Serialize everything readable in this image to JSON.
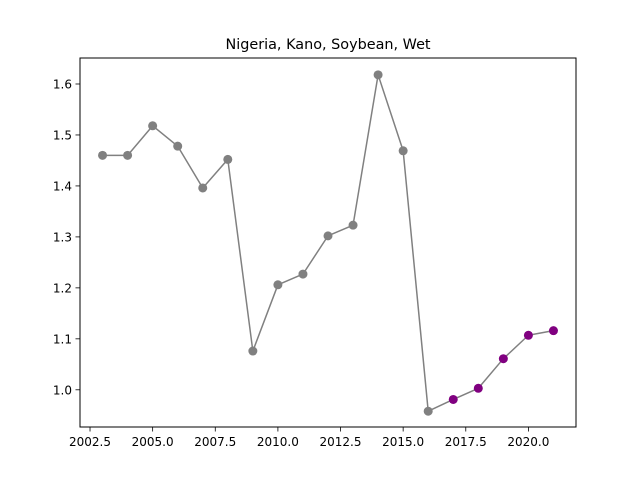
{
  "chart_data": {
    "type": "line",
    "title": "Nigeria, Kano, Soybean, Wet",
    "xlabel": "",
    "ylabel": "",
    "xlim": [
      2002.1,
      2021.9
    ],
    "ylim": [
      0.927,
      1.651
    ],
    "grid": false,
    "x_ticks": [
      2002.5,
      2005.0,
      2007.5,
      2010.0,
      2012.5,
      2015.0,
      2017.5,
      2020.0
    ],
    "x_tick_labels": [
      "2002.5",
      "2005.0",
      "2007.5",
      "2010.0",
      "2012.5",
      "2015.0",
      "2017.5",
      "2020.0"
    ],
    "y_ticks": [
      1.0,
      1.1,
      1.2,
      1.3,
      1.4,
      1.5,
      1.6
    ],
    "y_tick_labels": [
      "1.0",
      "1.1",
      "1.2",
      "1.3",
      "1.4",
      "1.5",
      "1.6"
    ],
    "x": [
      2003,
      2004,
      2005,
      2006,
      2007,
      2008,
      2009,
      2010,
      2011,
      2012,
      2013,
      2014,
      2015,
      2016,
      2017,
      2018,
      2019,
      2020,
      2021
    ],
    "y": [
      1.46,
      1.46,
      1.518,
      1.478,
      1.396,
      1.452,
      1.076,
      1.206,
      1.227,
      1.302,
      1.323,
      1.618,
      1.469,
      0.958,
      0.981,
      1.003,
      1.061,
      1.107,
      1.116
    ],
    "line_color": "#808080",
    "series": [
      {
        "x": [
          2003,
          2004,
          2005,
          2006,
          2007,
          2008,
          2009,
          2010,
          2011,
          2012,
          2013,
          2014,
          2015,
          2016
        ],
        "y": [
          1.46,
          1.46,
          1.518,
          1.478,
          1.396,
          1.452,
          1.076,
          1.206,
          1.227,
          1.302,
          1.323,
          1.618,
          1.469,
          0.958
        ],
        "color": "#808080"
      },
      {
        "x": [
          2017,
          2018,
          2019,
          2020,
          2021
        ],
        "y": [
          0.981,
          1.003,
          1.061,
          1.107,
          1.116
        ],
        "color": "#800080"
      }
    ]
  }
}
